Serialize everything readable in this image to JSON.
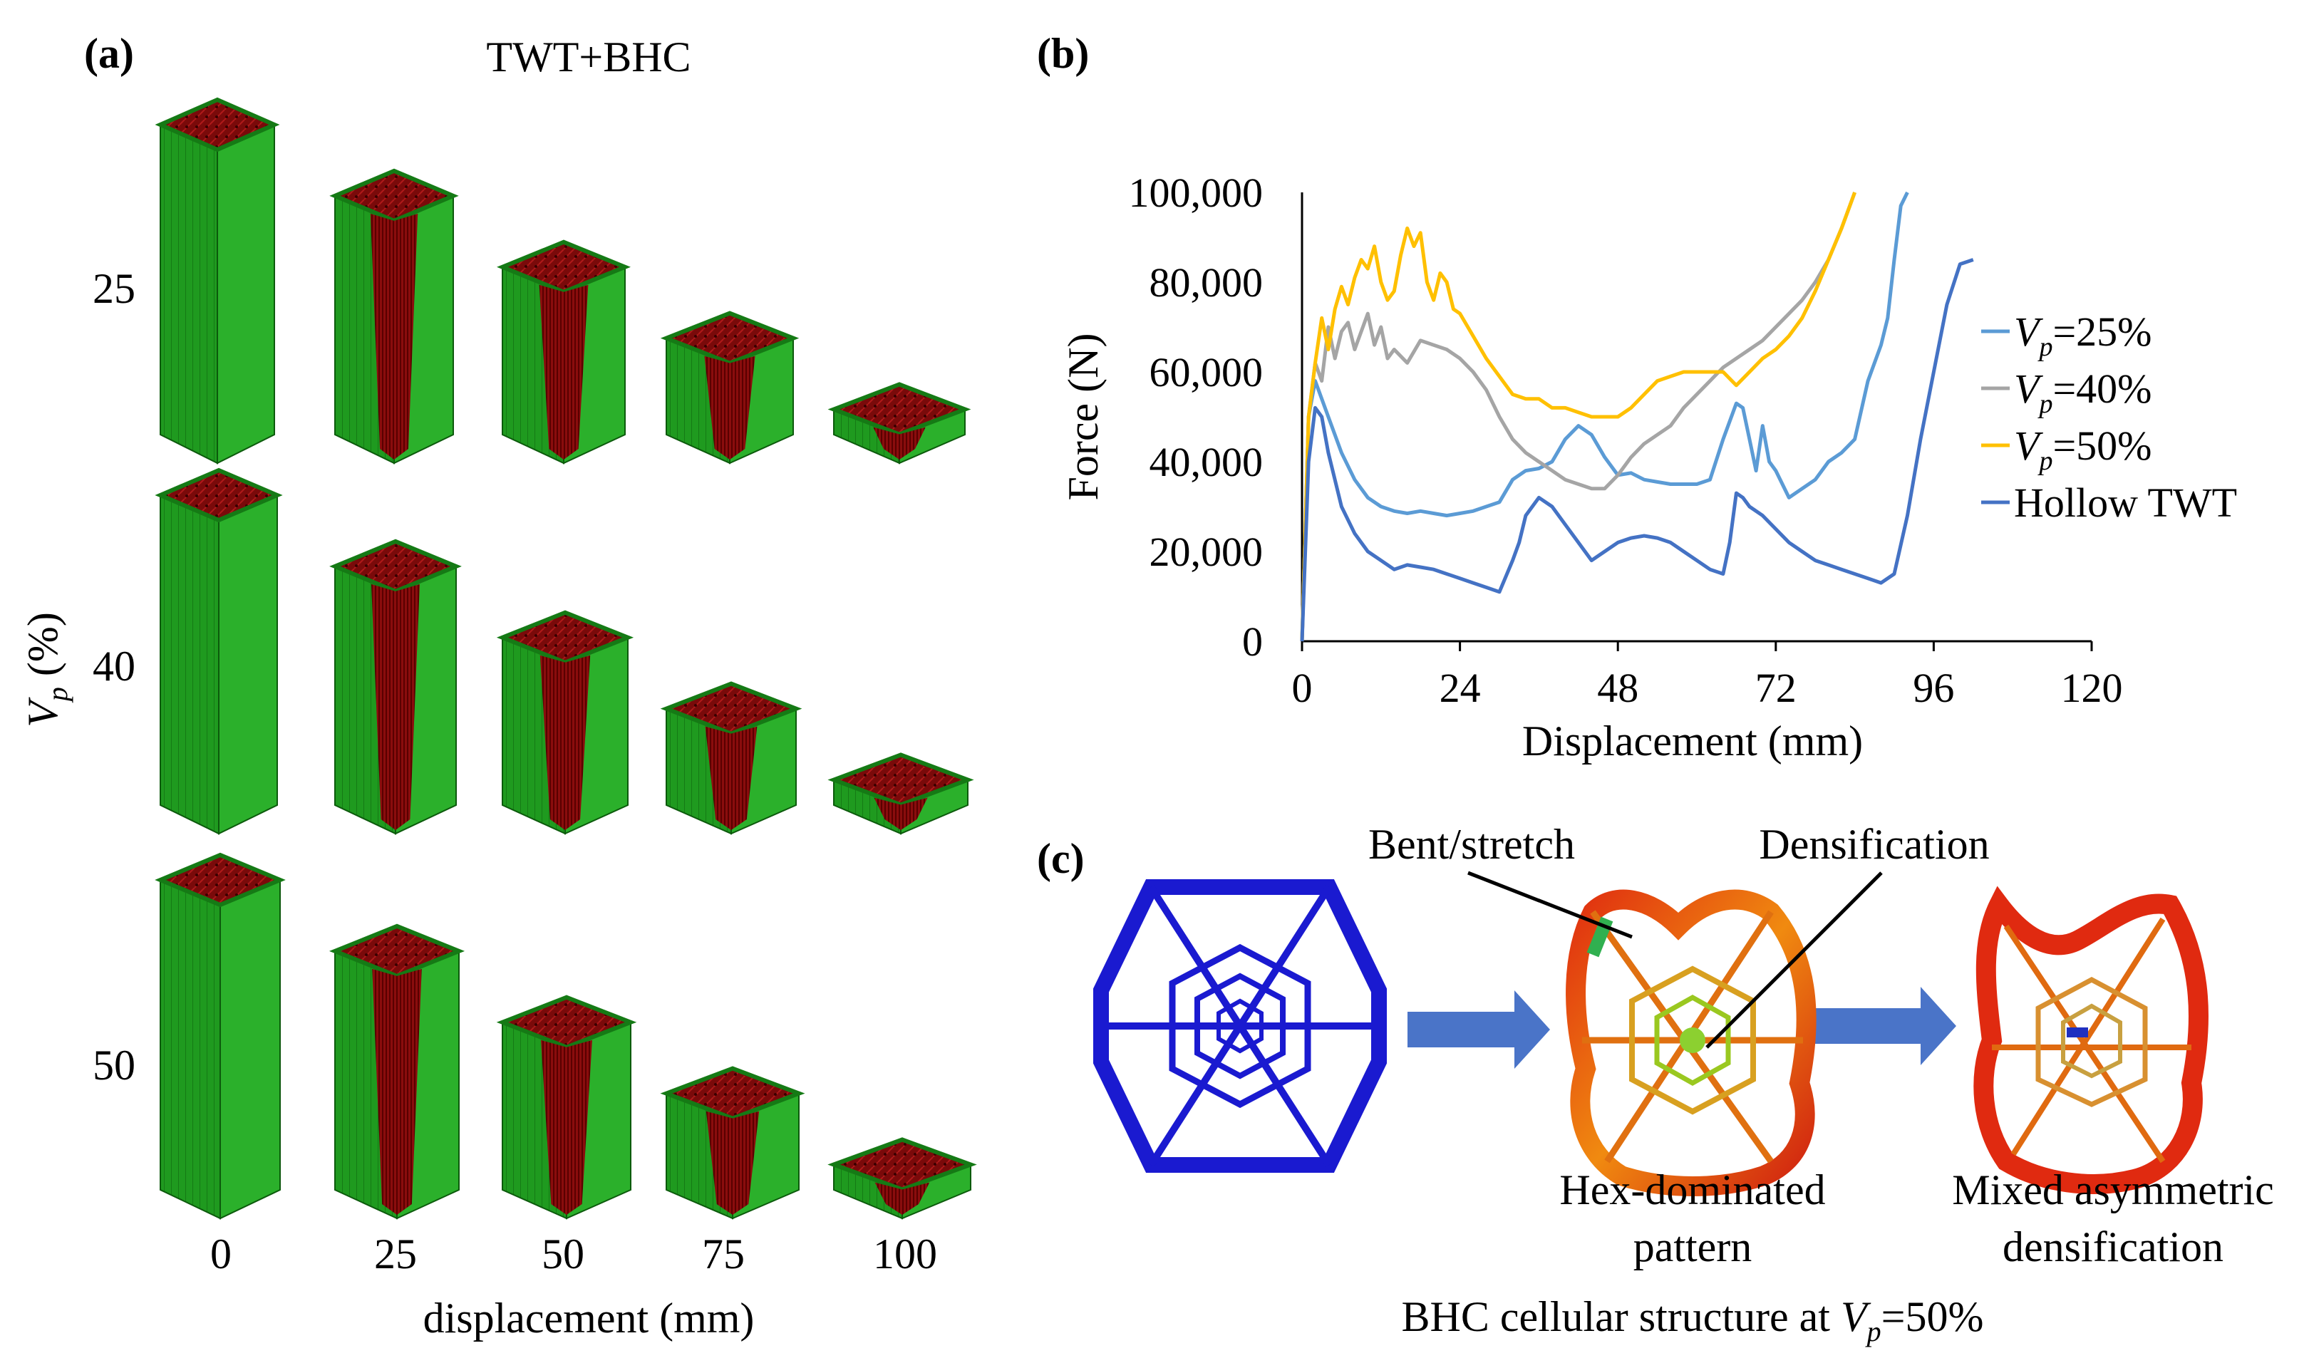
{
  "panel_a": {
    "label": "(a)",
    "title": "TWT+BHC",
    "ylabel_symbol": "V",
    "ylabel_sub": "p",
    "ylabel_unit": " (%)",
    "rows": [
      "25",
      "40",
      "50"
    ],
    "cols": [
      "0",
      "25",
      "50",
      "75",
      "100"
    ],
    "xlabel": "displacement (mm)"
  },
  "panel_b": {
    "label": "(b)"
  },
  "chart_data": {
    "type": "line",
    "title": "",
    "xlabel": "Displacement (mm)",
    "ylabel": "Force (N)",
    "xlim": [
      0,
      120
    ],
    "ylim": [
      0,
      100000
    ],
    "xticks": [
      0,
      24,
      48,
      72,
      96,
      120
    ],
    "yticks": [
      0,
      20000,
      40000,
      60000,
      80000,
      100000
    ],
    "ytick_labels": [
      "0",
      "20,000",
      "40,000",
      "60,000",
      "80,000",
      "100,000"
    ],
    "legend_position": "right",
    "series": [
      {
        "name": "=25%",
        "legend_symbol": "V",
        "legend_sub": "p",
        "color": "#5b9bd5",
        "x": [
          0,
          1,
          2,
          4,
          6,
          8,
          10,
          12,
          14,
          16,
          18,
          20,
          22,
          24,
          26,
          28,
          30,
          32,
          34,
          36,
          38,
          40,
          42,
          44,
          46,
          48,
          50,
          52,
          54,
          56,
          58,
          60,
          62,
          64,
          66,
          67,
          68,
          69,
          70,
          71,
          72,
          74,
          76,
          78,
          80,
          82,
          84,
          86,
          88,
          89,
          90,
          91,
          92
        ],
        "y": [
          0,
          50000,
          58000,
          50000,
          42000,
          36000,
          32000,
          30000,
          29000,
          28500,
          29000,
          28500,
          28000,
          28500,
          29000,
          30000,
          31000,
          36000,
          38000,
          38500,
          40000,
          45000,
          48000,
          46000,
          41000,
          37000,
          37500,
          36000,
          35500,
          35000,
          35000,
          35000,
          36000,
          45000,
          53000,
          52000,
          45000,
          38000,
          48000,
          40000,
          38000,
          32000,
          34000,
          36000,
          40000,
          42000,
          45000,
          58000,
          66000,
          72000,
          85000,
          97000,
          100000
        ]
      },
      {
        "name": "=40%",
        "legend_symbol": "V",
        "legend_sub": "p",
        "color": "#a5a5a5",
        "x": [
          0,
          1,
          2,
          3,
          4,
          5,
          6,
          7,
          8,
          9,
          10,
          11,
          12,
          13,
          14,
          16,
          18,
          20,
          22,
          24,
          26,
          28,
          30,
          32,
          34,
          36,
          38,
          40,
          42,
          44,
          46,
          48,
          50,
          52,
          54,
          56,
          58,
          60,
          62,
          64,
          66,
          68,
          70,
          72,
          74,
          76,
          78,
          80,
          82,
          84
        ],
        "y": [
          0,
          50000,
          62000,
          58000,
          70000,
          63000,
          69000,
          71000,
          65000,
          69000,
          73000,
          66000,
          70000,
          63000,
          65000,
          62000,
          67000,
          66000,
          65000,
          63000,
          60000,
          56000,
          50000,
          45000,
          42000,
          40000,
          38000,
          36000,
          35000,
          34000,
          34000,
          37000,
          41000,
          44000,
          46000,
          48000,
          52000,
          55000,
          58000,
          61000,
          63000,
          65000,
          67000,
          70000,
          73000,
          76000,
          80000,
          85000,
          92000,
          100000
        ]
      },
      {
        "name": "=50%",
        "legend_symbol": "V",
        "legend_sub": "p",
        "color": "#ffc000",
        "x": [
          0,
          1,
          2,
          3,
          4,
          5,
          6,
          7,
          8,
          9,
          10,
          11,
          12,
          13,
          14,
          15,
          16,
          17,
          18,
          19,
          20,
          21,
          22,
          23,
          24,
          26,
          28,
          30,
          32,
          34,
          36,
          38,
          40,
          42,
          44,
          46,
          48,
          50,
          52,
          54,
          56,
          58,
          60,
          62,
          64,
          66,
          68,
          70,
          72,
          74,
          76,
          78,
          80,
          82,
          84
        ],
        "y": [
          0,
          50000,
          62000,
          72000,
          65000,
          74000,
          79000,
          75000,
          81000,
          85000,
          83000,
          88000,
          80000,
          76000,
          78000,
          86000,
          92000,
          88000,
          91000,
          80000,
          76000,
          82000,
          80000,
          74000,
          73000,
          68000,
          63000,
          59000,
          55000,
          54000,
          54000,
          52000,
          52000,
          51000,
          50000,
          50000,
          50000,
          52000,
          55000,
          58000,
          59000,
          60000,
          60000,
          60000,
          60000,
          57000,
          60000,
          63000,
          65000,
          68000,
          72000,
          78000,
          85000,
          92000,
          100000
        ]
      },
      {
        "name": "Hollow TWT",
        "legend_symbol": "",
        "legend_sub": "",
        "color": "#4472c4",
        "x": [
          0,
          1,
          2,
          3,
          4,
          6,
          8,
          10,
          12,
          14,
          16,
          18,
          20,
          22,
          24,
          26,
          28,
          30,
          32,
          33,
          34,
          36,
          38,
          40,
          42,
          44,
          46,
          48,
          50,
          52,
          54,
          56,
          58,
          60,
          62,
          64,
          65,
          66,
          67,
          68,
          70,
          72,
          74,
          76,
          78,
          80,
          82,
          84,
          86,
          88,
          90,
          92,
          94,
          96,
          98,
          100,
          102
        ],
        "y": [
          0,
          40000,
          52000,
          50000,
          42000,
          30000,
          24000,
          20000,
          18000,
          16000,
          17000,
          16500,
          16000,
          15000,
          14000,
          13000,
          12000,
          11000,
          18000,
          22000,
          28000,
          32000,
          30000,
          26000,
          22000,
          18000,
          20000,
          22000,
          23000,
          23500,
          23000,
          22000,
          20000,
          18000,
          16000,
          15000,
          22000,
          33000,
          32000,
          30000,
          28000,
          25000,
          22000,
          20000,
          18000,
          17000,
          16000,
          15000,
          14000,
          13000,
          15000,
          28000,
          45000,
          60000,
          75000,
          84000,
          85000
        ]
      }
    ]
  },
  "panel_c": {
    "label": "(c)",
    "annotation_bent": "Bent/stretch",
    "annotation_dens": "Densification",
    "caption_hex": [
      "Hex-dominated",
      "pattern"
    ],
    "caption_mixed": [
      "Mixed asymmetric",
      "densification"
    ],
    "caption_bottom_prefix": "BHC cellular structure at ",
    "caption_bottom_symbol": "V",
    "caption_bottom_sub": "p",
    "caption_bottom_suffix": "=50%"
  }
}
